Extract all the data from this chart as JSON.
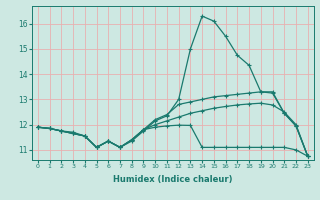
{
  "xlabel": "Humidex (Indice chaleur)",
  "bg_color": "#cde8e2",
  "grid_color": "#e8b0b0",
  "line_color": "#1a7a6e",
  "xlim": [
    -0.5,
    23.5
  ],
  "ylim": [
    10.6,
    16.7
  ],
  "xticks": [
    0,
    1,
    2,
    3,
    4,
    5,
    6,
    7,
    8,
    9,
    10,
    11,
    12,
    13,
    14,
    15,
    16,
    17,
    18,
    19,
    20,
    21,
    22,
    23
  ],
  "yticks": [
    11,
    12,
    13,
    14,
    15,
    16
  ],
  "line1_x": [
    0,
    1,
    2,
    3,
    4,
    5,
    6,
    7,
    8,
    9,
    10,
    11,
    12,
    13,
    14,
    15,
    16,
    17,
    18,
    19,
    20,
    21,
    22,
    23
  ],
  "line1_y": [
    11.9,
    11.85,
    11.75,
    11.7,
    11.55,
    11.1,
    11.35,
    11.1,
    11.35,
    11.75,
    12.15,
    12.35,
    13.0,
    15.0,
    16.3,
    16.1,
    15.5,
    14.75,
    14.35,
    13.3,
    13.25,
    12.45,
    11.95,
    10.75
  ],
  "line2_x": [
    0,
    1,
    2,
    3,
    4,
    5,
    6,
    7,
    8,
    9,
    10,
    11,
    12,
    13,
    14,
    15,
    16,
    17,
    18,
    19,
    20,
    21,
    22,
    23
  ],
  "line2_y": [
    11.9,
    11.85,
    11.75,
    11.65,
    11.55,
    11.1,
    11.35,
    11.1,
    11.4,
    11.8,
    12.2,
    12.4,
    12.8,
    12.9,
    13.0,
    13.1,
    13.15,
    13.2,
    13.25,
    13.3,
    13.3,
    12.45,
    11.95,
    10.75
  ],
  "line3_x": [
    0,
    1,
    2,
    3,
    4,
    5,
    6,
    7,
    8,
    9,
    10,
    11,
    12,
    13,
    14,
    15,
    16,
    17,
    18,
    19,
    20,
    21,
    22,
    23
  ],
  "line3_y": [
    11.9,
    11.85,
    11.75,
    11.65,
    11.55,
    11.1,
    11.35,
    11.1,
    11.4,
    11.8,
    12.0,
    12.15,
    12.3,
    12.45,
    12.55,
    12.65,
    12.72,
    12.78,
    12.82,
    12.85,
    12.78,
    12.5,
    12.0,
    10.75
  ],
  "line4_x": [
    0,
    1,
    2,
    3,
    4,
    5,
    6,
    7,
    8,
    9,
    10,
    11,
    12,
    13,
    14,
    15,
    16,
    17,
    18,
    19,
    20,
    21,
    22,
    23
  ],
  "line4_y": [
    11.9,
    11.85,
    11.75,
    11.65,
    11.55,
    11.1,
    11.35,
    11.1,
    11.4,
    11.8,
    11.9,
    11.95,
    11.98,
    11.97,
    11.1,
    11.1,
    11.1,
    11.1,
    11.1,
    11.1,
    11.1,
    11.1,
    11.0,
    10.75
  ]
}
